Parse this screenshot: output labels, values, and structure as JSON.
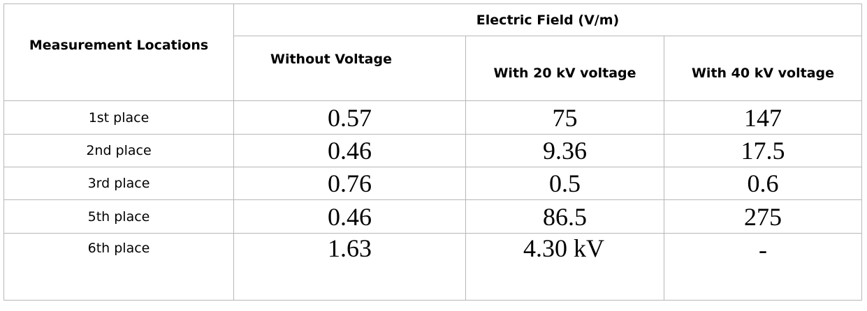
{
  "table": {
    "corner_header": "Measurement Locations",
    "group_header": "Electric Field (V/m)",
    "columns": [
      "Without Voltage",
      "With 20 kV voltage",
      "With 40 kV voltage"
    ],
    "rows": [
      {
        "location": "1st place",
        "values": [
          "0.57",
          "75",
          "147"
        ]
      },
      {
        "location": "2nd place",
        "values": [
          "0.46",
          "9.36",
          "17.5"
        ]
      },
      {
        "location": "3rd place",
        "values": [
          "0.76",
          "0.5",
          "0.6"
        ]
      },
      {
        "location": "5th place",
        "values": [
          "0.46",
          "86.5",
          "275"
        ]
      },
      {
        "location": "6th place",
        "values": [
          "1.63",
          "4.30 kV",
          "-"
        ]
      }
    ]
  }
}
